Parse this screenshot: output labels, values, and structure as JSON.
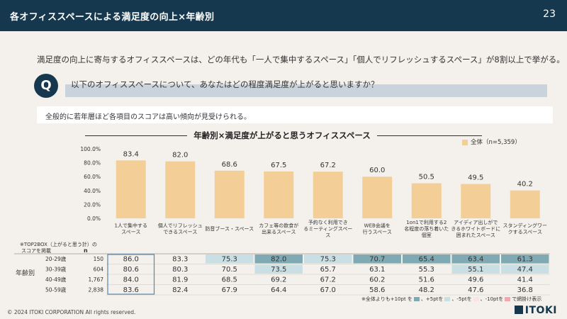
{
  "header": {
    "title": "各オフィススペースによる満足度の向上×年齢別",
    "page": "23"
  },
  "headline": "満足度の向上に寄与するオフィススペースは、どの年代も「一人で集中するスペース」「個人でリフレッシュするスペース」が8割以上で挙がる。",
  "question": {
    "badge": "Q",
    "text": "以下のオフィススペースについて、あなたはどの程度満足度が上がると思いますか？"
  },
  "subnote": "全般的に若年層ほど各項目のスコアは高い傾向が見受けられる。",
  "table_labels": {
    "top2box": "※TOP2BOX（上がると思う計）の",
    "top2box2": "スコアを掲載",
    "n_header": "n",
    "age_group": "年齢別"
  },
  "footnote": {
    "prefix": "※全体よりも+10pt を",
    "a": "、+5ptを",
    "b": "、-5ptを",
    "c": "、-10ptを",
    "d": "で網掛け表示"
  },
  "footer": {
    "copyright": "© 2024 ITOKI CORPORATION All rights reserved.",
    "logo": "ITOKI"
  },
  "colors": {
    "bar": "#f3cf97",
    "plus10": "#7faab3",
    "plus5": "#c9dfe3",
    "minus5": "#fde3e6",
    "minus10": "#f4a7b0",
    "navy": "#15384e"
  },
  "chart_data": {
    "type": "bar",
    "title": "年齢別×満足度が上がると思うオフィススペース",
    "legend": [
      "全体（n=5,359）"
    ],
    "ylim": [
      0,
      100
    ],
    "yticks": [
      "0.0%",
      "20.0%",
      "40.0%",
      "60.0%",
      "80.0%",
      "100.0%"
    ],
    "categories": [
      [
        "1人で集中する",
        "スペース"
      ],
      [
        "個人でリフレッシュ",
        "できるスペース"
      ],
      [
        "防音ブース・スペース"
      ],
      [
        "カフェ等の飲食が",
        "出来るスペース"
      ],
      [
        "予約なく利用でき",
        "るミーティングスペー",
        "ス"
      ],
      [
        "WEB会議を",
        "行うスペース"
      ],
      [
        "1on1で利用する2",
        "名程度の落ち着いた",
        "個室"
      ],
      [
        "アイディア出しがで",
        "きるホワイトボードに",
        "囲まれたスペース"
      ],
      [
        "スタンディングワー",
        "クするスペース"
      ]
    ],
    "values": [
      83.4,
      82.0,
      68.6,
      67.5,
      67.2,
      60.0,
      50.5,
      49.5,
      40.2
    ],
    "value_labels": [
      "83.4",
      "82.0",
      "68.6",
      "67.5",
      "67.2",
      "60.0",
      "50.5",
      "49.5",
      "40.2"
    ],
    "table": {
      "rows": [
        {
          "label": "20-29歳",
          "n": "150",
          "values": [
            "86.0",
            "83.3",
            "75.3",
            "82.0",
            "75.3",
            "70.7",
            "65.4",
            "63.4",
            "61.3"
          ],
          "shade": [
            "",
            "",
            "plus5",
            "plus10",
            "plus5",
            "plus10",
            "plus10",
            "plus10",
            "plus10"
          ]
        },
        {
          "label": "30-39歳",
          "n": "604",
          "values": [
            "80.6",
            "80.3",
            "70.5",
            "73.5",
            "65.7",
            "63.1",
            "55.3",
            "55.1",
            "47.4"
          ],
          "shade": [
            "",
            "",
            "",
            "plus5",
            "",
            "",
            "",
            "plus5",
            "plus5"
          ]
        },
        {
          "label": "40-49歳",
          "n": "1,767",
          "values": [
            "84.0",
            "81.9",
            "68.5",
            "69.2",
            "67.2",
            "60.2",
            "51.6",
            "49.6",
            "41.4"
          ],
          "shade": [
            "",
            "",
            "",
            "",
            "",
            "",
            "",
            "",
            ""
          ]
        },
        {
          "label": "50-59歳",
          "n": "2,838",
          "values": [
            "83.6",
            "82.4",
            "67.9",
            "64.4",
            "67.0",
            "58.6",
            "48.2",
            "47.6",
            "36.8"
          ],
          "shade": [
            "",
            "",
            "",
            "",
            "",
            "",
            "",
            "",
            ""
          ]
        }
      ]
    }
  }
}
